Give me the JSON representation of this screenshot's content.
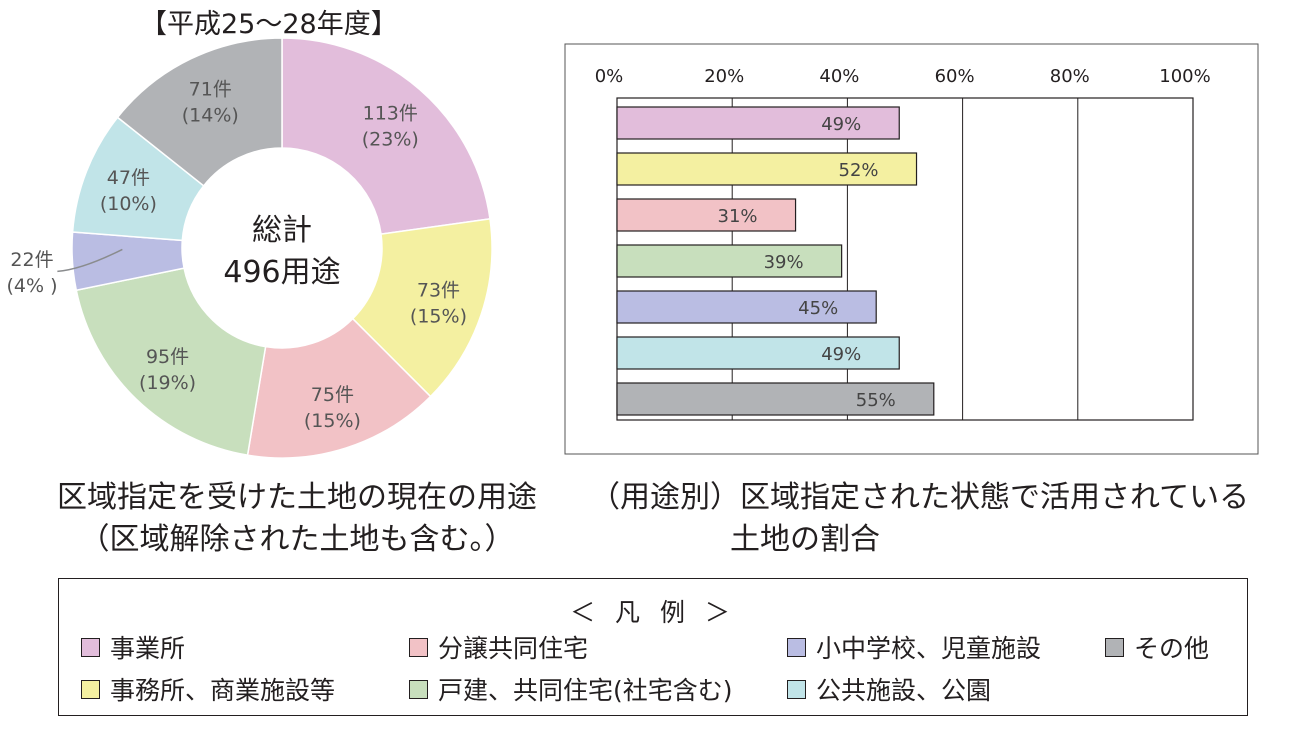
{
  "donut_title": "【平成25～28年度】",
  "center_label": {
    "line1": "総計",
    "line2": "496用途"
  },
  "caption_left": {
    "line1": "区域指定を受けた土地の現在の用途",
    "line2": "（区域解除された土地も含む。）"
  },
  "caption_right": {
    "line1": "（用途別）区域指定された状態で活用されている",
    "line2": "土地の割合"
  },
  "legend": {
    "title": "＜ 凡 例 ＞",
    "items": [
      {
        "label": "事業所",
        "color": "#e2bddb"
      },
      {
        "label": "事務所、商業施設等",
        "color": "#f4f0a1"
      },
      {
        "label": "分譲共同住宅",
        "color": "#f2c2c6"
      },
      {
        "label": "戸建、共同住宅(社宅含む)",
        "color": "#c8dfbd"
      },
      {
        "label": "小中学校、児童施設",
        "color": "#babde3"
      },
      {
        "label": "公共施設、公園",
        "color": "#c1e4e8"
      },
      {
        "label": "その他",
        "color": "#b1b3b6"
      }
    ]
  },
  "chart_data": [
    {
      "type": "pie",
      "title": "【平成25～28年度】",
      "categories": [
        "事業所",
        "事務所、商業施設等",
        "分譲共同住宅",
        "戸建、共同住宅(社宅含む)",
        "小中学校、児童施設",
        "公共施設、公園",
        "その他"
      ],
      "values": [
        113,
        73,
        75,
        95,
        22,
        47,
        71
      ],
      "value_labels": [
        "113件",
        "73件",
        "75件",
        "95件",
        "22件",
        "47件",
        "71件"
      ],
      "percent_labels": [
        "(23%)",
        "(15%)",
        "(15%)",
        "(19%)",
        "(4% )",
        "(10%)",
        "(14%)"
      ],
      "colors": [
        "#e2bddb",
        "#f4f0a1",
        "#f2c2c6",
        "#c8dfbd",
        "#babde3",
        "#c1e4e8",
        "#b1b3b6"
      ],
      "total_label": "496用途"
    },
    {
      "type": "bar",
      "orientation": "horizontal",
      "categories": [
        "事業所",
        "事務所、商業施設等",
        "分譲共同住宅",
        "戸建、共同住宅(社宅含む)",
        "小中学校、児童施設",
        "公共施設、公園",
        "その他"
      ],
      "values": [
        49,
        52,
        31,
        39,
        45,
        49,
        55
      ],
      "value_labels": [
        "49%",
        "52%",
        "31%",
        "39%",
        "45%",
        "49%",
        "55%"
      ],
      "colors": [
        "#e2bddb",
        "#f4f0a1",
        "#f2c2c6",
        "#c8dfbd",
        "#babde3",
        "#c1e4e8",
        "#b1b3b6"
      ],
      "xlim": [
        0,
        100
      ],
      "tick_labels": [
        "0%",
        "20%",
        "40%",
        "60%",
        "80%",
        "100%"
      ],
      "tick_values": [
        0,
        20,
        40,
        60,
        80,
        100
      ],
      "grid": true
    }
  ]
}
